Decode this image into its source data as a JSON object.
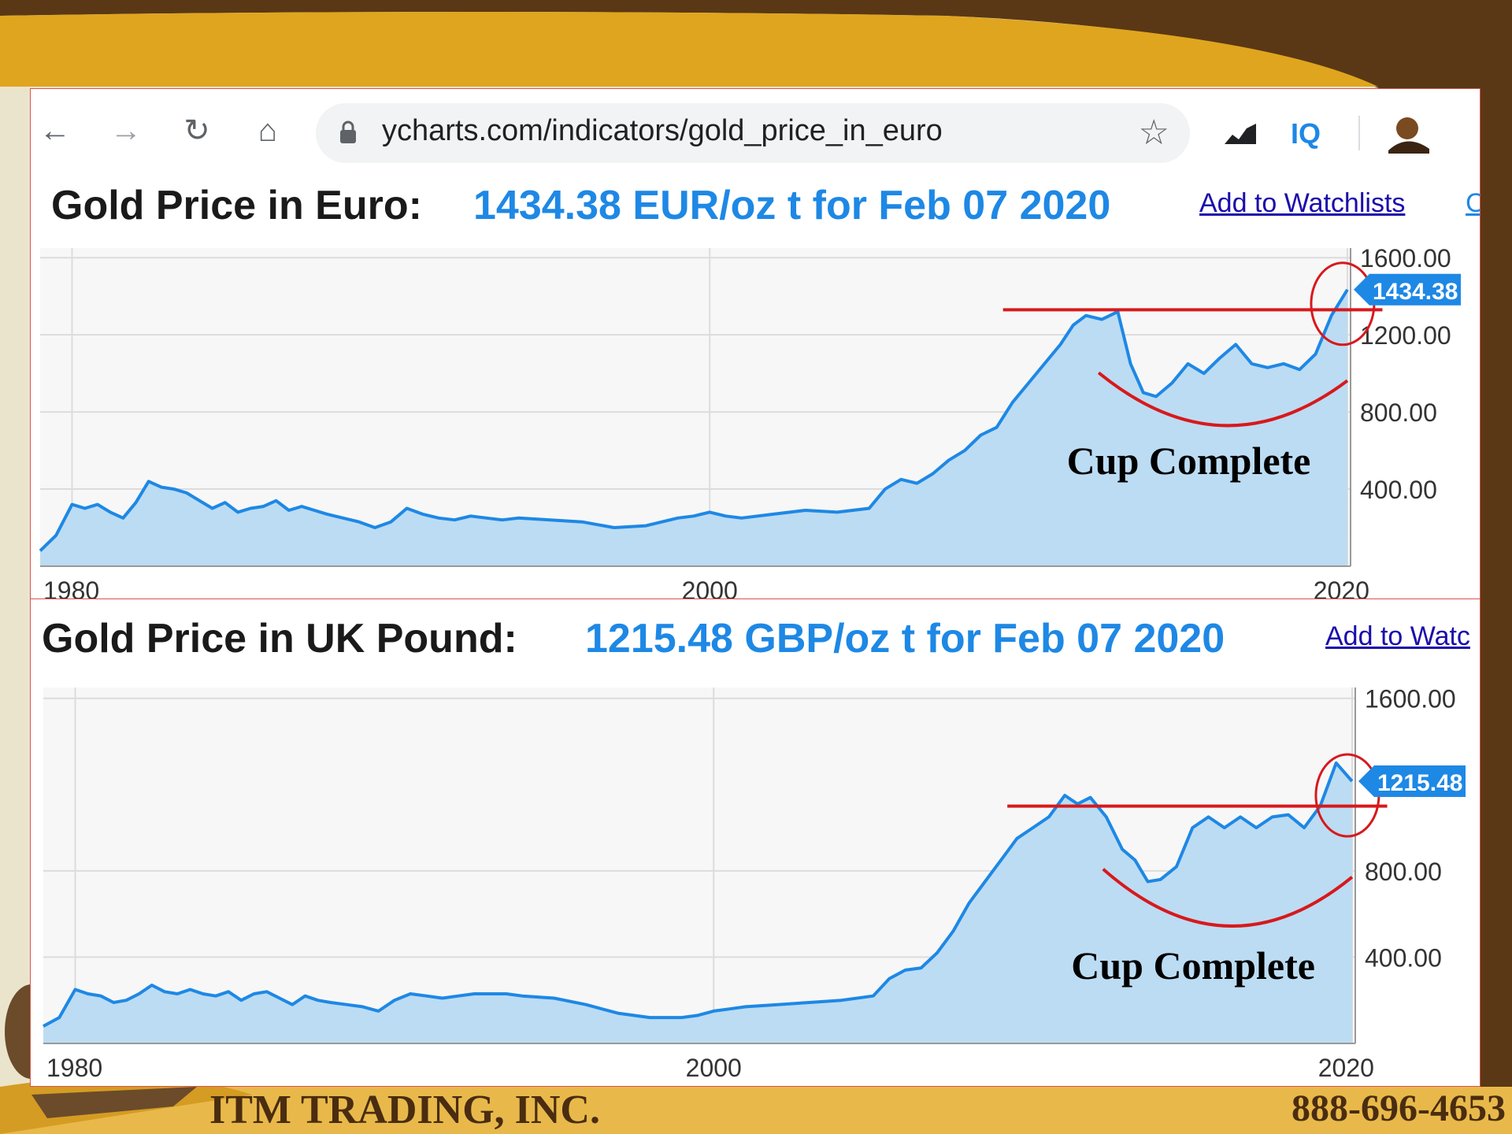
{
  "browser": {
    "url": "ycharts.com/indicators/gold_price_in_euro",
    "iq_label": "IQ"
  },
  "footer": {
    "company": "ITM TRADING, INC.",
    "phone": "888-696-4653"
  },
  "colors": {
    "line": "#1e88e5",
    "fill": "#bcdcf3",
    "annotation": "#d7191c",
    "frame_brown": "#5a3815",
    "frame_gold": "#e0a51e"
  },
  "chart_data": [
    {
      "type": "area",
      "title": "Gold Price in Euro:",
      "value_label": "1434.38 EUR/oz t for Feb 07 2020",
      "link": "Add to Watchlists",
      "link_extra": "C",
      "x_ticks": [
        "1980",
        "2000",
        "2020"
      ],
      "y_ticks": [
        "400.00",
        "800.00",
        "1200.00",
        "1600.00"
      ],
      "ylim": [
        0,
        1650
      ],
      "xlim": [
        1979,
        2020.1
      ],
      "last_value_label": "1434.38",
      "annotation": "Cup Complete",
      "resistance_level": 1330,
      "grid": true,
      "x": [
        1979.0,
        1979.5,
        1980.0,
        1980.4,
        1980.8,
        1981.2,
        1981.6,
        1982.0,
        1982.4,
        1982.8,
        1983.2,
        1983.6,
        1984.0,
        1984.4,
        1984.8,
        1985.2,
        1985.6,
        1986.0,
        1986.4,
        1986.8,
        1987.2,
        1987.6,
        1988.0,
        1988.5,
        1989.0,
        1989.5,
        1990.0,
        1990.5,
        1991.0,
        1991.5,
        1992.0,
        1992.5,
        1993.0,
        1993.5,
        1994.0,
        1995.0,
        1996.0,
        1997.0,
        1998.0,
        1999.0,
        1999.5,
        2000.0,
        2000.5,
        2001.0,
        2002.0,
        2003.0,
        2004.0,
        2005.0,
        2005.5,
        2006.0,
        2006.5,
        2007.0,
        2007.5,
        2008.0,
        2008.5,
        2009.0,
        2009.5,
        2010.0,
        2010.5,
        2011.0,
        2011.4,
        2011.8,
        2012.3,
        2012.8,
        2013.2,
        2013.6,
        2014.0,
        2014.5,
        2015.0,
        2015.5,
        2016.0,
        2016.5,
        2017.0,
        2017.5,
        2018.0,
        2018.5,
        2019.0,
        2019.5,
        2020.0
      ],
      "y": [
        80,
        160,
        320,
        300,
        320,
        280,
        250,
        330,
        440,
        410,
        400,
        380,
        340,
        300,
        330,
        280,
        300,
        310,
        340,
        290,
        310,
        290,
        270,
        250,
        230,
        200,
        230,
        300,
        270,
        250,
        240,
        260,
        250,
        240,
        250,
        240,
        230,
        200,
        210,
        250,
        260,
        280,
        260,
        250,
        270,
        290,
        280,
        300,
        400,
        450,
        430,
        480,
        550,
        600,
        680,
        720,
        850,
        950,
        1050,
        1150,
        1250,
        1300,
        1280,
        1320,
        1050,
        900,
        880,
        950,
        1050,
        1000,
        1080,
        1150,
        1050,
        1030,
        1050,
        1020,
        1100,
        1300,
        1434.38
      ]
    },
    {
      "type": "area",
      "title": "Gold Price in UK Pound:",
      "value_label": "1215.48 GBP/oz t for Feb 07 2020",
      "link": "Add to Watc",
      "x_ticks": [
        "1980",
        "2000",
        "2020"
      ],
      "y_ticks": [
        "400.00",
        "800.00",
        "1600.00"
      ],
      "ylim": [
        0,
        1650
      ],
      "xlim": [
        1979,
        2020.1
      ],
      "last_value_label": "1215.48",
      "annotation": "Cup Complete",
      "resistance_level": 1100,
      "grid": true,
      "x": [
        1979.0,
        1979.5,
        1980.0,
        1980.4,
        1980.8,
        1981.2,
        1981.6,
        1982.0,
        1982.4,
        1982.8,
        1983.2,
        1983.6,
        1984.0,
        1984.4,
        1984.8,
        1985.2,
        1985.6,
        1986.0,
        1986.4,
        1986.8,
        1987.2,
        1987.6,
        1988.0,
        1988.5,
        1989.0,
        1989.5,
        1990.0,
        1990.5,
        1991.0,
        1991.5,
        1992.0,
        1992.5,
        1993.0,
        1993.5,
        1994.0,
        1995.0,
        1996.0,
        1997.0,
        1998.0,
        1999.0,
        1999.5,
        2000.0,
        2000.5,
        2001.0,
        2002.0,
        2003.0,
        2004.0,
        2005.0,
        2005.5,
        2006.0,
        2006.5,
        2007.0,
        2007.5,
        2008.0,
        2008.5,
        2009.0,
        2009.5,
        2010.0,
        2010.5,
        2011.0,
        2011.4,
        2011.8,
        2012.3,
        2012.8,
        2013.2,
        2013.6,
        2014.0,
        2014.5,
        2015.0,
        2015.5,
        2016.0,
        2016.5,
        2017.0,
        2017.5,
        2018.0,
        2018.5,
        2019.0,
        2019.5,
        2020.0
      ],
      "y": [
        80,
        120,
        250,
        230,
        220,
        190,
        200,
        230,
        270,
        240,
        230,
        250,
        230,
        220,
        240,
        200,
        230,
        240,
        210,
        180,
        220,
        200,
        190,
        180,
        170,
        150,
        200,
        230,
        220,
        210,
        220,
        230,
        230,
        230,
        220,
        210,
        180,
        140,
        120,
        120,
        130,
        150,
        160,
        170,
        180,
        190,
        200,
        220,
        300,
        340,
        350,
        420,
        520,
        650,
        750,
        850,
        950,
        1000,
        1050,
        1150,
        1110,
        1140,
        1050,
        900,
        850,
        750,
        760,
        820,
        1000,
        1050,
        1000,
        1050,
        1000,
        1050,
        1060,
        1000,
        1100,
        1300,
        1215.48
      ]
    }
  ]
}
